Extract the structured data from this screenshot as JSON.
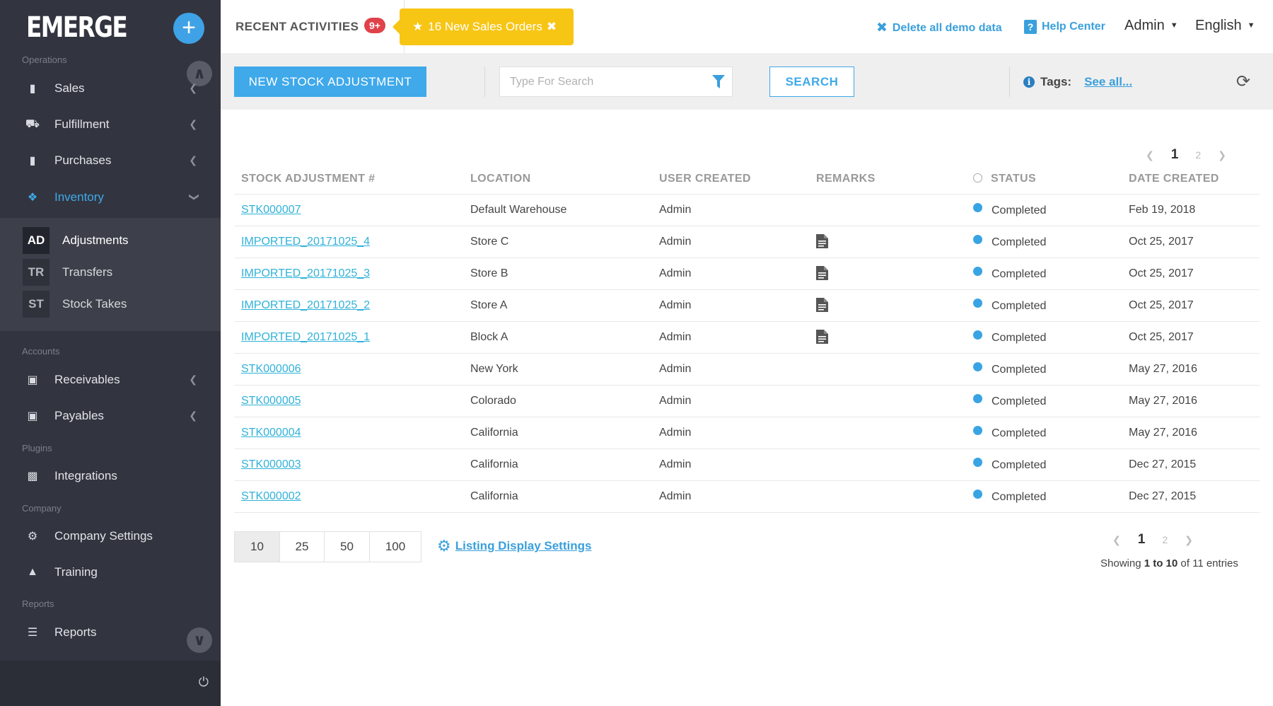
{
  "app": {
    "logo": "EMERGE"
  },
  "sidebar": {
    "sections": {
      "operations": "Operations",
      "accounts": "Accounts",
      "plugins": "Plugins",
      "company": "Company",
      "reports": "Reports"
    },
    "items": [
      {
        "label": "Sales",
        "icon": "book-icon"
      },
      {
        "label": "Fulfillment",
        "icon": "truck-icon"
      },
      {
        "label": "Purchases",
        "icon": "book-icon"
      },
      {
        "label": "Inventory",
        "icon": "cubes-icon"
      },
      {
        "label": "Receivables",
        "icon": "money-icon"
      },
      {
        "label": "Payables",
        "icon": "money-icon"
      },
      {
        "label": "Integrations",
        "icon": "puzzle-icon"
      },
      {
        "label": "Company Settings",
        "icon": "gear-icon"
      },
      {
        "label": "Training",
        "icon": "graduation-cap-icon"
      },
      {
        "label": "Reports",
        "icon": "bars-icon"
      }
    ],
    "submenu": [
      {
        "abbr": "AD",
        "label": "Adjustments"
      },
      {
        "abbr": "TR",
        "label": "Transfers"
      },
      {
        "abbr": "ST",
        "label": "Stock Takes"
      }
    ]
  },
  "topbar": {
    "recent_label": "RECENT ACTIVITIES",
    "recent_badge": "9+",
    "notice": "16 New Sales Orders",
    "delete_demo": "Delete all demo data",
    "help": "Help Center",
    "user": "Admin",
    "language": "English"
  },
  "toolbar": {
    "new_button": "NEW STOCK ADJUSTMENT",
    "search_placeholder": "Type For Search",
    "search_button": "SEARCH",
    "tags_label": "Tags:",
    "tags_link": "See all..."
  },
  "pagination": {
    "current": "1",
    "next": "2"
  },
  "table": {
    "columns": [
      "STOCK ADJUSTMENT #",
      "LOCATION",
      "USER CREATED",
      "REMARKS",
      "STATUS",
      "DATE CREATED"
    ],
    "rows": [
      {
        "id": "STK000007",
        "location": "Default Warehouse",
        "user": "Admin",
        "remarks": false,
        "status": "Completed",
        "date": "Feb 19, 2018"
      },
      {
        "id": "IMPORTED_20171025_4",
        "location": "Store C",
        "user": "Admin",
        "remarks": true,
        "status": "Completed",
        "date": "Oct 25, 2017"
      },
      {
        "id": "IMPORTED_20171025_3",
        "location": "Store B",
        "user": "Admin",
        "remarks": true,
        "status": "Completed",
        "date": "Oct 25, 2017"
      },
      {
        "id": "IMPORTED_20171025_2",
        "location": "Store A",
        "user": "Admin",
        "remarks": true,
        "status": "Completed",
        "date": "Oct 25, 2017"
      },
      {
        "id": "IMPORTED_20171025_1",
        "location": "Block A",
        "user": "Admin",
        "remarks": true,
        "status": "Completed",
        "date": "Oct 25, 2017"
      },
      {
        "id": "STK000006",
        "location": "New York",
        "user": "Admin",
        "remarks": false,
        "status": "Completed",
        "date": "May 27, 2016"
      },
      {
        "id": "STK000005",
        "location": "Colorado",
        "user": "Admin",
        "remarks": false,
        "status": "Completed",
        "date": "May 27, 2016"
      },
      {
        "id": "STK000004",
        "location": "California",
        "user": "Admin",
        "remarks": false,
        "status": "Completed",
        "date": "May 27, 2016"
      },
      {
        "id": "STK000003",
        "location": "California",
        "user": "Admin",
        "remarks": false,
        "status": "Completed",
        "date": "Dec 27, 2015"
      },
      {
        "id": "STK000002",
        "location": "California",
        "user": "Admin",
        "remarks": false,
        "status": "Completed",
        "date": "Dec 27, 2015"
      }
    ]
  },
  "footer": {
    "page_sizes": [
      "10",
      "25",
      "50",
      "100"
    ],
    "selected_page_size": "10",
    "display_settings": "Listing Display Settings",
    "showing_prefix": "Showing",
    "showing_range": "1 to 10",
    "showing_suffix": "of 11 entries"
  },
  "colors": {
    "accent": "#3fa9ea",
    "sidebar": "#323540",
    "notice": "#f7c514",
    "badge": "#e0424a",
    "status_dot": "#39a4e4"
  }
}
